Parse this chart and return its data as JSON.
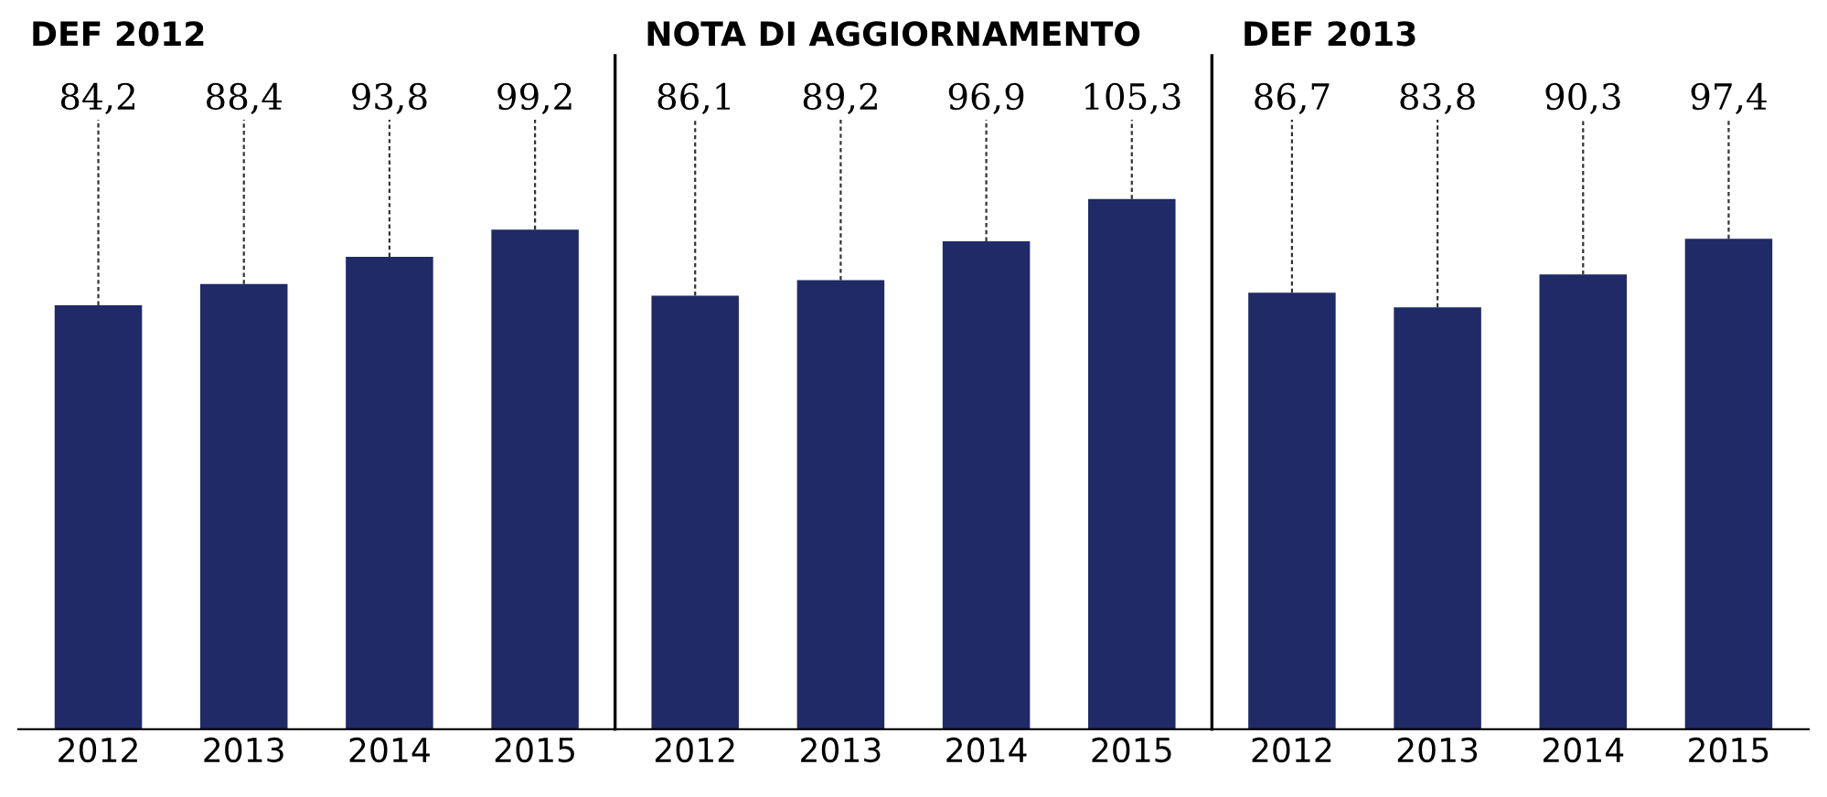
{
  "chart_data": [
    {
      "type": "bar",
      "title": "DEF 2012",
      "categories": [
        "2012",
        "2013",
        "2014",
        "2015"
      ],
      "values": [
        84.2,
        88.4,
        93.8,
        99.2
      ],
      "color": "#1f2a66",
      "value_labels": [
        "84,2",
        "88,4",
        "93,8",
        "99,2"
      ]
    },
    {
      "type": "bar",
      "title": "NOTA DI AGGIORNAMENTO",
      "categories": [
        "2012",
        "2013",
        "2014",
        "2015"
      ],
      "values": [
        86.1,
        89.2,
        96.9,
        105.3
      ],
      "color": "#1f2a66",
      "value_labels": [
        "86,1",
        "89,2",
        "96,9",
        "105,3"
      ]
    },
    {
      "type": "bar",
      "title": "DEF 2013",
      "categories": [
        "2012",
        "2013",
        "2014",
        "2015"
      ],
      "values": [
        86.7,
        83.8,
        90.3,
        97.4
      ],
      "color": "#1f2a66",
      "value_labels": [
        "86,7",
        "83,8",
        "90,3",
        "97,4"
      ]
    }
  ]
}
